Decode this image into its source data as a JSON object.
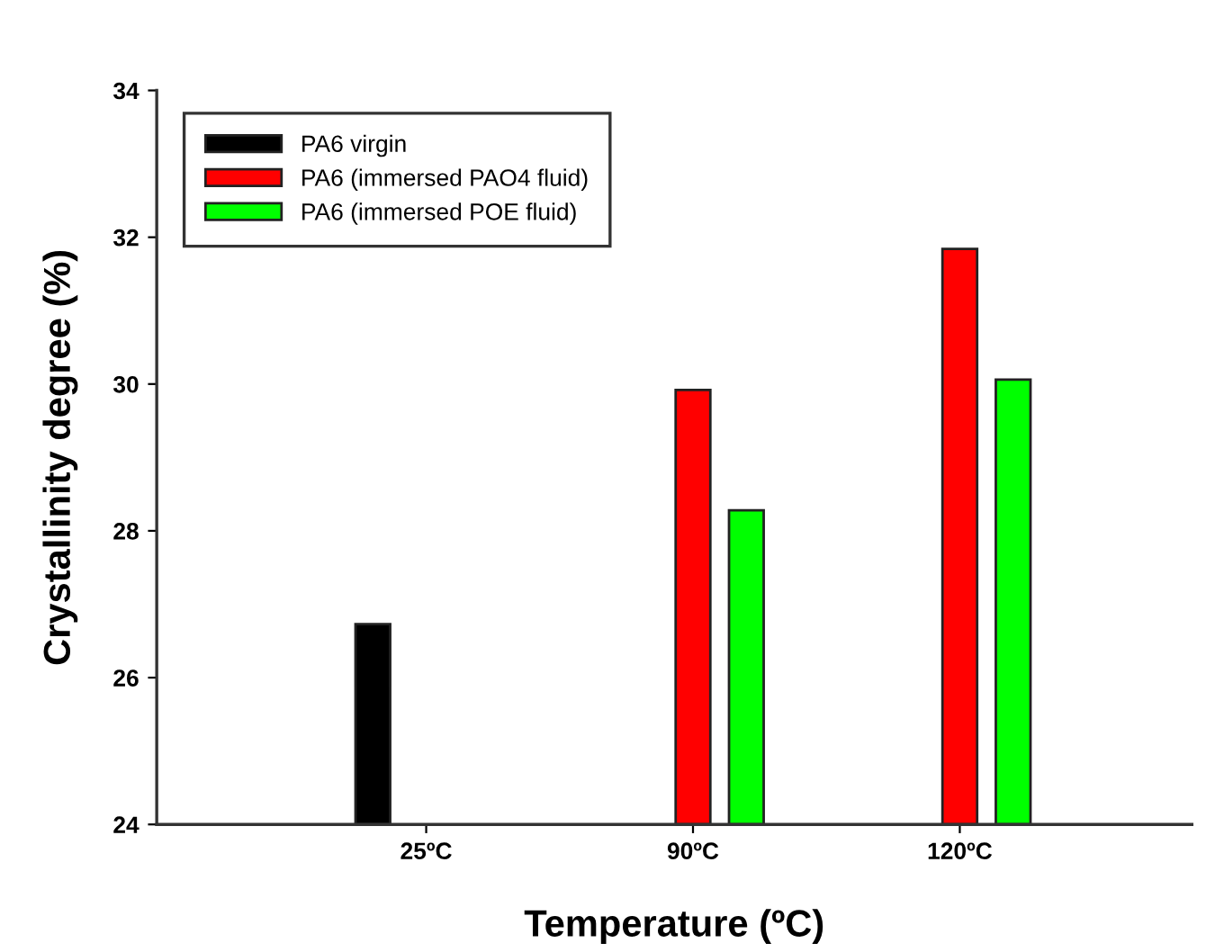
{
  "chart_data": {
    "type": "bar",
    "xlabel": "Temperature (ºC)",
    "ylabel": "Crystallinity degree (%)",
    "categories": [
      "25ºC",
      "90ºC",
      "120ºC"
    ],
    "series": [
      {
        "name": "PA6 virgin",
        "color": "#000000",
        "values": [
          26.73,
          null,
          null
        ]
      },
      {
        "name": "PA6 (immersed PAO4 fluid)",
        "color": "#ff0000",
        "values": [
          null,
          29.92,
          31.84
        ]
      },
      {
        "name": "PA6 (immersed POE fluid)",
        "color": "#00ff00",
        "values": [
          null,
          28.28,
          30.06
        ]
      }
    ],
    "ylim": [
      24,
      34
    ],
    "yticks": [
      24,
      26,
      28,
      30,
      32,
      34
    ],
    "grid": false,
    "legend": "top left"
  }
}
